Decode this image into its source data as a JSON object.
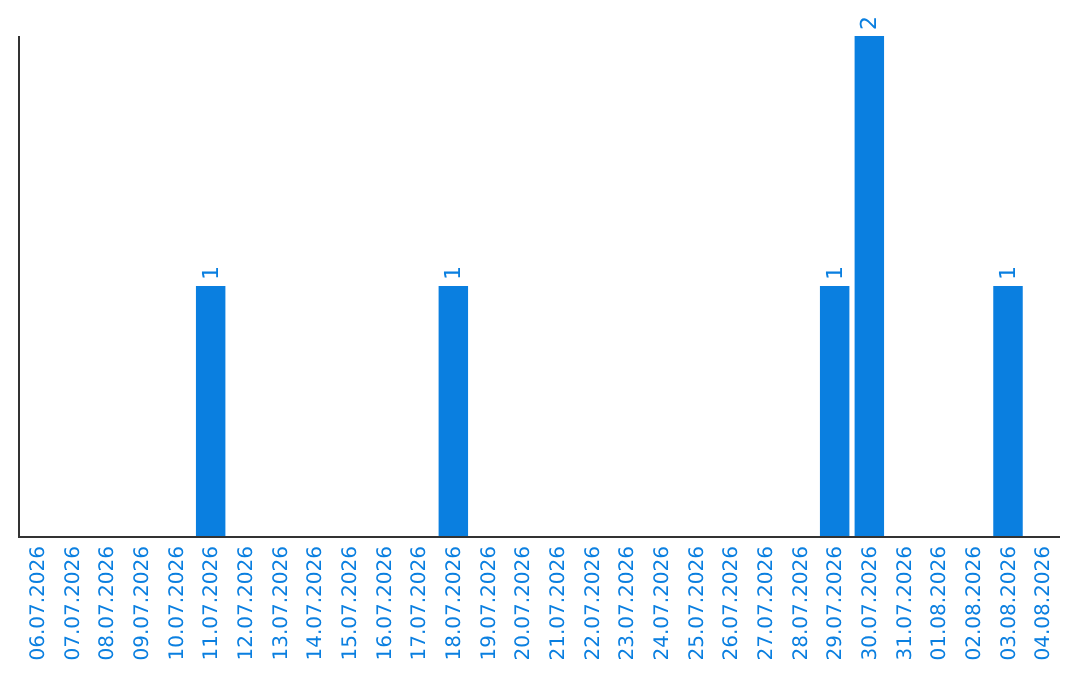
{
  "chart_data": {
    "type": "bar",
    "categories": [
      "06.07.2026",
      "07.07.2026",
      "08.07.2026",
      "09.07.2026",
      "10.07.2026",
      "11.07.2026",
      "12.07.2026",
      "13.07.2026",
      "14.07.2026",
      "15.07.2026",
      "16.07.2026",
      "17.07.2026",
      "18.07.2026",
      "19.07.2026",
      "20.07.2026",
      "21.07.2026",
      "22.07.2026",
      "23.07.2026",
      "24.07.2026",
      "25.07.2026",
      "26.07.2026",
      "27.07.2026",
      "28.07.2026",
      "29.07.2026",
      "30.07.2026",
      "31.07.2026",
      "01.08.2026",
      "02.08.2026",
      "03.08.2026",
      "04.08.2026"
    ],
    "values": [
      0,
      0,
      0,
      0,
      0,
      1,
      0,
      0,
      0,
      0,
      0,
      0,
      1,
      0,
      0,
      0,
      0,
      0,
      0,
      0,
      0,
      0,
      0,
      1,
      2,
      0,
      0,
      0,
      1,
      0
    ],
    "value_labels": [
      null,
      null,
      null,
      null,
      null,
      "1",
      null,
      null,
      null,
      null,
      null,
      null,
      "1",
      null,
      null,
      null,
      null,
      null,
      null,
      null,
      null,
      null,
      null,
      "1",
      "2",
      null,
      null,
      null,
      "1",
      null
    ],
    "color": "#0a7fe0",
    "ylim": [
      0,
      2
    ],
    "tick_labels": "x",
    "legend": false
  }
}
